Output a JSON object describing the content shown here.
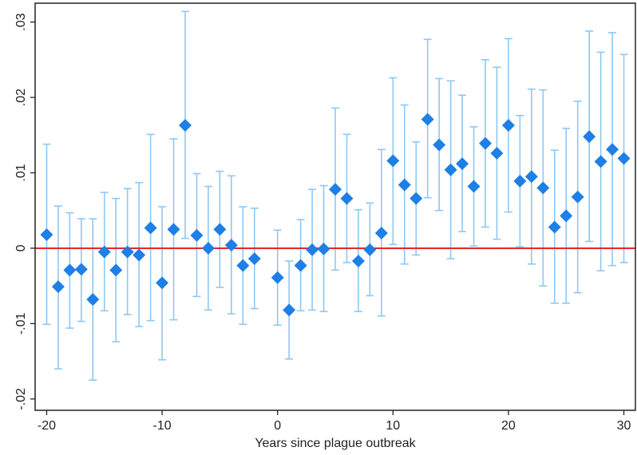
{
  "chart_data": {
    "type": "scatter",
    "xlabel": "Years since plague outbreak",
    "ylabel": "",
    "xlim": [
      -21,
      31
    ],
    "ylim": [
      -0.0215,
      0.0325
    ],
    "xticks": [
      -20,
      -10,
      0,
      10,
      20,
      30
    ],
    "xtick_labels": [
      "-20",
      "-10",
      "0",
      "10",
      "20",
      "30"
    ],
    "yticks": [
      -0.02,
      -0.01,
      0,
      0.01,
      0.02,
      0.03
    ],
    "ytick_labels": [
      "-.02",
      "-.01",
      "0",
      ".01",
      ".02",
      ".03"
    ],
    "reference_line": {
      "y": 0,
      "color": "#e8262a"
    },
    "marker_color": "#1e7fe6",
    "errorbar_color": "#8ec8f2",
    "grid": false,
    "series": [
      {
        "points": [
          {
            "x": -20,
            "y": 0.0018,
            "lo": -0.0101,
            "hi": 0.0138
          },
          {
            "x": -19,
            "y": -0.0051,
            "lo": -0.016,
            "hi": 0.0056
          },
          {
            "x": -18,
            "y": -0.0029,
            "lo": -0.0106,
            "hi": 0.0047
          },
          {
            "x": -17,
            "y": -0.0028,
            "lo": -0.0097,
            "hi": 0.0039
          },
          {
            "x": -16,
            "y": -0.0068,
            "lo": -0.0175,
            "hi": 0.0039
          },
          {
            "x": -15,
            "y": -0.0005,
            "lo": -0.0083,
            "hi": 0.0074
          },
          {
            "x": -14,
            "y": -0.0029,
            "lo": -0.0124,
            "hi": 0.0066
          },
          {
            "x": -13,
            "y": -0.0005,
            "lo": -0.0088,
            "hi": 0.0079
          },
          {
            "x": -12,
            "y": -0.0009,
            "lo": -0.0104,
            "hi": 0.0087
          },
          {
            "x": -11,
            "y": 0.0027,
            "lo": -0.0096,
            "hi": 0.0151
          },
          {
            "x": -10,
            "y": -0.0046,
            "lo": -0.0148,
            "hi": 0.0055
          },
          {
            "x": -9,
            "y": 0.0025,
            "lo": -0.0095,
            "hi": 0.0145
          },
          {
            "x": -8,
            "y": 0.0163,
            "lo": 0.0013,
            "hi": 0.0314
          },
          {
            "x": -7,
            "y": 0.0017,
            "lo": -0.0064,
            "hi": 0.0099
          },
          {
            "x": -6,
            "y": 0.0,
            "lo": -0.0082,
            "hi": 0.0082
          },
          {
            "x": -5,
            "y": 0.0025,
            "lo": -0.0052,
            "hi": 0.0102
          },
          {
            "x": -4,
            "y": 0.0004,
            "lo": -0.0087,
            "hi": 0.0096
          },
          {
            "x": -3,
            "y": -0.0023,
            "lo": -0.0101,
            "hi": 0.0055
          },
          {
            "x": -2,
            "y": -0.0014,
            "lo": -0.008,
            "hi": 0.0053
          },
          {
            "x": 0,
            "y": -0.0039,
            "lo": -0.0102,
            "hi": 0.0024
          },
          {
            "x": 1,
            "y": -0.0082,
            "lo": -0.0147,
            "hi": -0.0017
          },
          {
            "x": 2,
            "y": -0.0023,
            "lo": -0.0083,
            "hi": 0.0038
          },
          {
            "x": 3,
            "y": -0.0002,
            "lo": -0.0082,
            "hi": 0.0078
          },
          {
            "x": 4,
            "y": -0.0001,
            "lo": -0.0084,
            "hi": 0.0083
          },
          {
            "x": 5,
            "y": 0.0078,
            "lo": -0.0029,
            "hi": 0.0186
          },
          {
            "x": 6,
            "y": 0.0066,
            "lo": -0.0019,
            "hi": 0.0151
          },
          {
            "x": 7,
            "y": -0.0017,
            "lo": -0.0084,
            "hi": 0.0051
          },
          {
            "x": 8,
            "y": -0.0002,
            "lo": -0.0063,
            "hi": 0.006
          },
          {
            "x": 9,
            "y": 0.002,
            "lo": -0.009,
            "hi": 0.0131
          },
          {
            "x": 10,
            "y": 0.0116,
            "lo": 0.0005,
            "hi": 0.0226
          },
          {
            "x": 11,
            "y": 0.0084,
            "lo": -0.0021,
            "hi": 0.019
          },
          {
            "x": 12,
            "y": 0.0066,
            "lo": -0.0009,
            "hi": 0.0141
          },
          {
            "x": 13,
            "y": 0.0171,
            "lo": 0.0067,
            "hi": 0.0277
          },
          {
            "x": 14,
            "y": 0.0137,
            "lo": 0.005,
            "hi": 0.0225
          },
          {
            "x": 15,
            "y": 0.0104,
            "lo": -0.0014,
            "hi": 0.0222
          },
          {
            "x": 16,
            "y": 0.0112,
            "lo": 0.0022,
            "hi": 0.0203
          },
          {
            "x": 17,
            "y": 0.0082,
            "lo": 0.0003,
            "hi": 0.0161
          },
          {
            "x": 18,
            "y": 0.0139,
            "lo": 0.0028,
            "hi": 0.025
          },
          {
            "x": 19,
            "y": 0.0126,
            "lo": 0.0012,
            "hi": 0.024
          },
          {
            "x": 20,
            "y": 0.0163,
            "lo": 0.0048,
            "hi": 0.0278
          },
          {
            "x": 21,
            "y": 0.0089,
            "lo": 0.0002,
            "hi": 0.0176
          },
          {
            "x": 22,
            "y": 0.0095,
            "lo": -0.0021,
            "hi": 0.0211
          },
          {
            "x": 23,
            "y": 0.008,
            "lo": -0.005,
            "hi": 0.021
          },
          {
            "x": 24,
            "y": 0.0028,
            "lo": -0.0073,
            "hi": 0.013
          },
          {
            "x": 25,
            "y": 0.0043,
            "lo": -0.0073,
            "hi": 0.0159
          },
          {
            "x": 26,
            "y": 0.0068,
            "lo": -0.0059,
            "hi": 0.0195
          },
          {
            "x": 27,
            "y": 0.0148,
            "lo": 0.0009,
            "hi": 0.0288
          },
          {
            "x": 28,
            "y": 0.0115,
            "lo": -0.003,
            "hi": 0.026
          },
          {
            "x": 29,
            "y": 0.0131,
            "lo": -0.0023,
            "hi": 0.0286
          },
          {
            "x": 30,
            "y": 0.0119,
            "lo": -0.0019,
            "hi": 0.0257
          }
        ]
      }
    ]
  }
}
